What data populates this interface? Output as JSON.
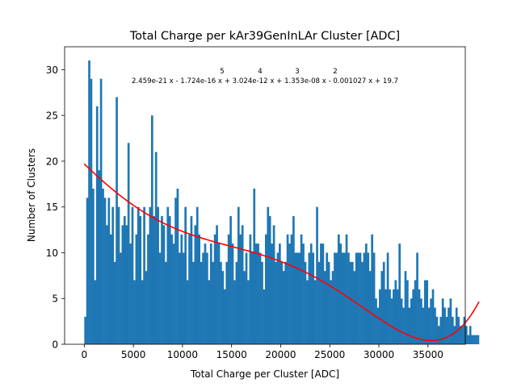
{
  "chart_data": {
    "type": "bar",
    "title": "Total Charge per kAr39GenInLAr Cluster [ADC]",
    "xlabel": "Total Charge per Cluster [ADC]",
    "ylabel": "Number of Clusters",
    "xlim": [
      -2000,
      38800
    ],
    "ylim": [
      0,
      32.5
    ],
    "xticks": [
      0,
      5000,
      10000,
      15000,
      20000,
      25000,
      30000,
      35000
    ],
    "yticks": [
      0,
      5,
      10,
      15,
      20,
      25,
      30
    ],
    "grid": false,
    "bar_color": "#1f77b4",
    "fit_color": "#ff0000",
    "fit_label": {
      "exponents": [
        "5",
        "4",
        "3",
        "2"
      ],
      "equation": "2.459e-21 x - 1.724e-16 x + 3.024e-12 x + 1.353e-08 x - 0.001027 x + 19.7"
    },
    "bin_start": 0,
    "bin_width": 200,
    "values": [
      3,
      16,
      31,
      29,
      17,
      7,
      26,
      19,
      29,
      17,
      16,
      13,
      16,
      12,
      15,
      9,
      27,
      15,
      10,
      13,
      14,
      13,
      22,
      11,
      15,
      7,
      12,
      15,
      14,
      7,
      15,
      8,
      12,
      15,
      25,
      14,
      21,
      15,
      10,
      14,
      13,
      9,
      15,
      14,
      12,
      11,
      16,
      17,
      10,
      12,
      10,
      15,
      7,
      12,
      14,
      9,
      13,
      15,
      12,
      9,
      10,
      11,
      10,
      7,
      11,
      9,
      12,
      13,
      11,
      9,
      8,
      6,
      9,
      12,
      14,
      11,
      7,
      9,
      15,
      12,
      13,
      8,
      10,
      7,
      12,
      10,
      17,
      11,
      11,
      10,
      9,
      6,
      12,
      15,
      14,
      11,
      13,
      9,
      10,
      11,
      9,
      8,
      9,
      12,
      11,
      12,
      14,
      10,
      10,
      10,
      12,
      11,
      9,
      7,
      10,
      11,
      10,
      7,
      15,
      9,
      11,
      11,
      8,
      10,
      9,
      7,
      8,
      10,
      10,
      12,
      11,
      10,
      10,
      12,
      10,
      9,
      9,
      8,
      10,
      10,
      10,
      9,
      10,
      11,
      10,
      8,
      12,
      10,
      5,
      4,
      6,
      8,
      9,
      6,
      10,
      6,
      5,
      6,
      7,
      6,
      11,
      5,
      4,
      8,
      7,
      4,
      5,
      6,
      7,
      10,
      6,
      5,
      4,
      7,
      7,
      4,
      5,
      6,
      4,
      3,
      2,
      3,
      5,
      4,
      3,
      4,
      5,
      3,
      2,
      4,
      3,
      2,
      2,
      3,
      2,
      1,
      2,
      1,
      1,
      1,
      1
    ]
  }
}
